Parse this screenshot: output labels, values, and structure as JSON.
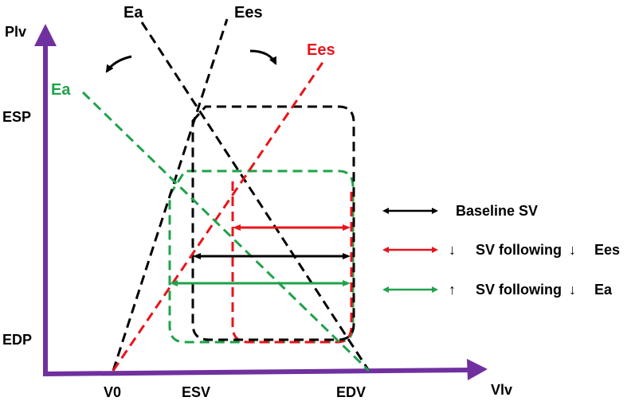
{
  "axes": {
    "y_label": "Plv",
    "x_label": "Vlv",
    "axis_color": "#7030A0",
    "y_ticks": [
      "ESP",
      "EDP"
    ],
    "x_ticks": [
      "V0",
      "ESV",
      "EDV"
    ]
  },
  "lines": {
    "baseline_ea": "Ea",
    "baseline_ees": "Ees",
    "reduced_ees": "Ees",
    "reduced_ea": "Ea"
  },
  "legend": {
    "baseline": "Baseline SV",
    "reduced_ees_arrow": "↓",
    "reduced_ees_text": "SV following",
    "reduced_ees_arrow2": "↓",
    "reduced_ees_label": "Ees",
    "reduced_ea_arrow": "↑",
    "reduced_ea_text": "SV following",
    "reduced_ea_arrow2": "↓",
    "reduced_ea_label": "Ea"
  },
  "colors": {
    "baseline": "#000000",
    "reduced_ees": "#E8141B",
    "reduced_ea": "#1FA24A",
    "axis": "#7030A0"
  }
}
